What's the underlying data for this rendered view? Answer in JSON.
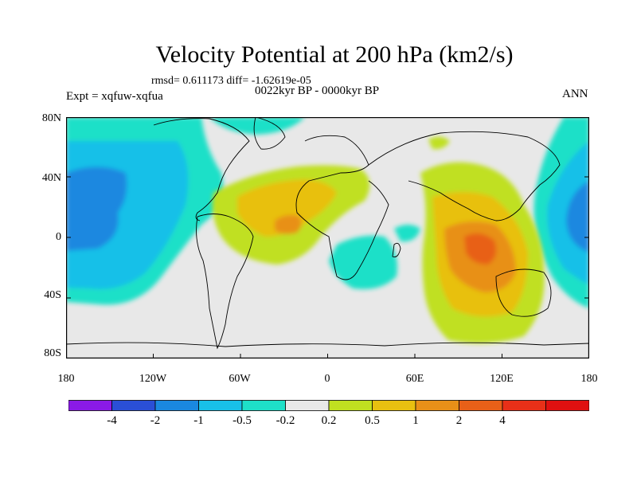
{
  "title": "Velocity Potential at 200 hPa (km2/s)",
  "stats": "rmsd= 0.611173 diff= -1.62619e-05",
  "experiment": "Expt = xqfuw-xqfua",
  "period": "0022kyr BP - 0000kyr BP",
  "season": "ANN",
  "lat_labels": [
    "80N",
    "40N",
    "0",
    "40S",
    "80S"
  ],
  "lon_labels": [
    "180",
    "120W",
    "60W",
    "0",
    "60E",
    "120E",
    "180"
  ],
  "colorbar": {
    "colors": [
      "#8a1ae6",
      "#2a4fd6",
      "#1a88e0",
      "#18c0e8",
      "#1ee0c8",
      "#e8e8e8",
      "#c0e020",
      "#e8c010",
      "#e89018",
      "#e86018",
      "#e83018",
      "#e01010"
    ],
    "labels": [
      "-4",
      "-2",
      "-1",
      "-0.5",
      "-0.2",
      "0.2",
      "0.5",
      "1",
      "2",
      "4"
    ]
  },
  "map_colors": {
    "ocean": "#e8e8e8",
    "l1": "#1ee0c8",
    "l2": "#18c0e8",
    "l3": "#1a88e0",
    "p1": "#c0e020",
    "p2": "#e8c010",
    "p3": "#e89018",
    "p4": "#e86018"
  }
}
